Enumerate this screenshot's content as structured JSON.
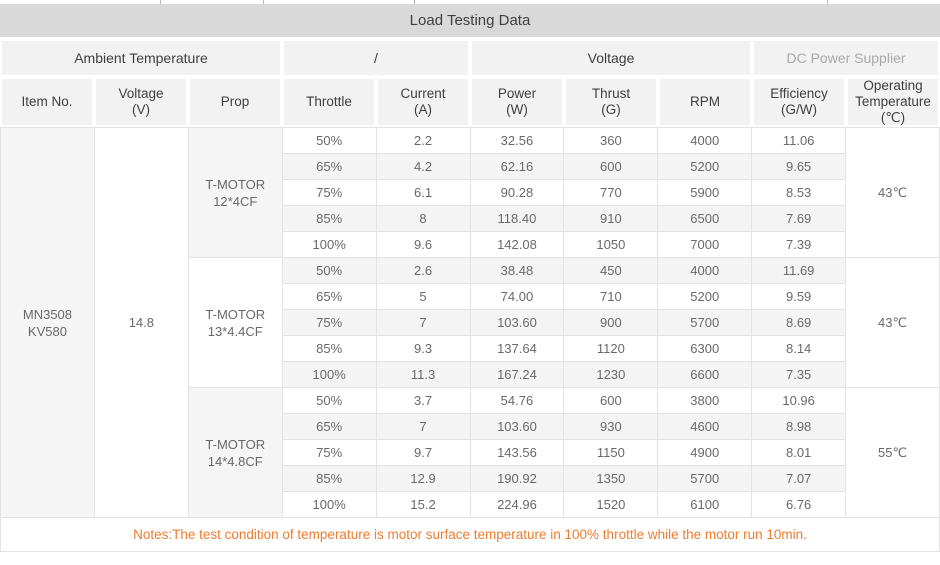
{
  "title": "Load Testing Data",
  "colors": {
    "title_bg": "#d9d9d9",
    "header_bg": "#f2f2f2",
    "stripe_bg": "#f4f4f4",
    "merged_shade_bg": "#f5f5f5",
    "border": "#e3e3e3",
    "text_dark": "#3f3f3f",
    "text_body": "#696969",
    "text_muted": "#a9a9a9",
    "notes_orange": "#ed7d31"
  },
  "header_groups": [
    {
      "label": "Ambient Temperature",
      "span": 3,
      "muted": false
    },
    {
      "label": "/",
      "span": 2,
      "muted": false
    },
    {
      "label": "Voltage",
      "span": 3,
      "muted": false
    },
    {
      "label": "DC Power Supplier",
      "span": 2,
      "muted": true
    }
  ],
  "columns": [
    {
      "id": "item-no",
      "lines": [
        "Item No."
      ]
    },
    {
      "id": "voltage",
      "lines": [
        "Voltage",
        "(V)"
      ]
    },
    {
      "id": "prop",
      "lines": [
        "Prop"
      ]
    },
    {
      "id": "throttle",
      "lines": [
        "Throttle"
      ]
    },
    {
      "id": "current",
      "lines": [
        "Current",
        "(A)"
      ]
    },
    {
      "id": "power",
      "lines": [
        "Power",
        "(W)"
      ]
    },
    {
      "id": "thrust",
      "lines": [
        "Thrust",
        "(G)"
      ]
    },
    {
      "id": "rpm",
      "lines": [
        "RPM"
      ]
    },
    {
      "id": "efficiency",
      "lines": [
        "Efficiency",
        "(G/W)"
      ]
    },
    {
      "id": "operating-temperature",
      "lines": [
        "Operating",
        "Temperature",
        "(℃)"
      ]
    }
  ],
  "item_no_lines": [
    "MN3508",
    "KV580"
  ],
  "supply_voltage": "14.8",
  "value_column_ids": [
    "throttle",
    "current",
    "power",
    "thrust",
    "rpm",
    "efficiency"
  ],
  "groups": [
    {
      "prop_lines": [
        "T-MOTOR",
        "12*4CF"
      ],
      "operating_temp": "43℃",
      "rows": [
        [
          "50%",
          "2.2",
          "32.56",
          "360",
          "4000",
          "11.06"
        ],
        [
          "65%",
          "4.2",
          "62.16",
          "600",
          "5200",
          "9.65"
        ],
        [
          "75%",
          "6.1",
          "90.28",
          "770",
          "5900",
          "8.53"
        ],
        [
          "85%",
          "8",
          "118.40",
          "910",
          "6500",
          "7.69"
        ],
        [
          "100%",
          "9.6",
          "142.08",
          "1050",
          "7000",
          "7.39"
        ]
      ]
    },
    {
      "prop_lines": [
        "T-MOTOR",
        "13*4.4CF"
      ],
      "operating_temp": "43℃",
      "rows": [
        [
          "50%",
          "2.6",
          "38.48",
          "450",
          "4000",
          "11.69"
        ],
        [
          "65%",
          "5",
          "74.00",
          "710",
          "5200",
          "9.59"
        ],
        [
          "75%",
          "7",
          "103.60",
          "900",
          "5700",
          "8.69"
        ],
        [
          "85%",
          "9.3",
          "137.64",
          "1120",
          "6300",
          "8.14"
        ],
        [
          "100%",
          "11.3",
          "167.24",
          "1230",
          "6600",
          "7.35"
        ]
      ]
    },
    {
      "prop_lines": [
        "T-MOTOR",
        "14*4.8CF"
      ],
      "operating_temp": "55℃",
      "rows": [
        [
          "50%",
          "3.7",
          "54.76",
          "600",
          "3800",
          "10.96"
        ],
        [
          "65%",
          "7",
          "103.60",
          "930",
          "4600",
          "8.98"
        ],
        [
          "75%",
          "9.7",
          "143.56",
          "1150",
          "4900",
          "8.01"
        ],
        [
          "85%",
          "12.9",
          "190.92",
          "1350",
          "5700",
          "7.07"
        ],
        [
          "100%",
          "15.2",
          "224.96",
          "1520",
          "6100",
          "6.76"
        ]
      ]
    }
  ],
  "notes": "Notes:The test condition of temperature is motor surface temperature in 100% throttle while the motor run 10min."
}
